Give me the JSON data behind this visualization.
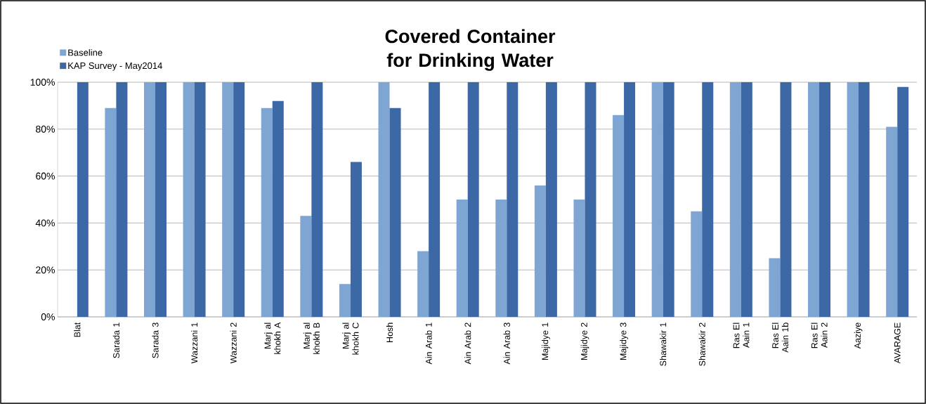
{
  "chart_data": {
    "type": "bar",
    "title": "Covered Container for Drinking Water",
    "categories": [
      "Blat",
      "Sarada 1",
      "Sarada 3",
      "Wazzani 1",
      "Wazzani 2",
      "Marj al khokh A",
      "Marj al khokh B",
      "Marj al khokh C",
      "Hosh",
      "Ain Arab 1",
      "Ain Arab 2",
      "Ain Arab 3",
      "Majidye 1",
      "Majidye 2",
      "Majidye 3",
      "Shawakir 1",
      "Shawakir 2",
      "Ras El Aain 1",
      "Ras El Aain 1b",
      "Ras El Aain 2",
      "Aaziye",
      "AVARAGE"
    ],
    "series": [
      {
        "name": "Baseline",
        "color": "#7fa5d3",
        "values": [
          null,
          89,
          100,
          100,
          100,
          89,
          43,
          14,
          100,
          28,
          50,
          50,
          56,
          50,
          86,
          100,
          45,
          100,
          25,
          100,
          100,
          81
        ]
      },
      {
        "name": "KAP Survey - May2014",
        "color": "#3c68a5",
        "values": [
          100,
          100,
          100,
          100,
          100,
          92,
          100,
          66,
          89,
          100,
          100,
          100,
          100,
          100,
          100,
          100,
          100,
          100,
          100,
          100,
          100,
          98
        ]
      }
    ],
    "ylim": [
      0,
      100
    ],
    "yticks": [
      {
        "value": 0,
        "label": "0%"
      },
      {
        "value": 20,
        "label": "20%"
      },
      {
        "value": 40,
        "label": "40%"
      },
      {
        "value": 60,
        "label": "60%"
      },
      {
        "value": 80,
        "label": "80%"
      },
      {
        "value": 100,
        "label": "100%"
      }
    ],
    "grid": "y",
    "legend": "top left"
  }
}
